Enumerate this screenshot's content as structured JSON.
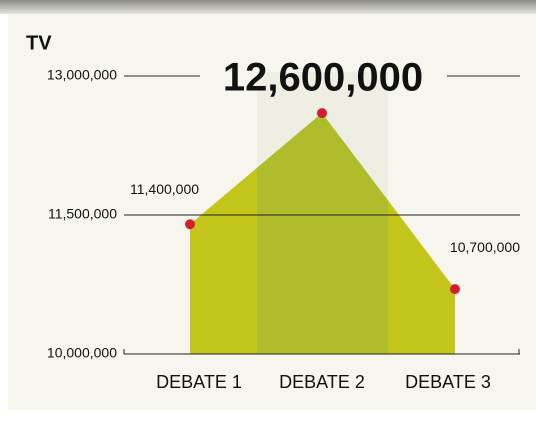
{
  "chart_data": {
    "type": "area",
    "title": "TV",
    "categories": [
      "DEBATE 1",
      "DEBATE 2",
      "DEBATE 3"
    ],
    "values": [
      11400000,
      12600000,
      10700000
    ],
    "value_labels": [
      "11,400,000",
      "12,600,000",
      "10,700,000"
    ],
    "color": "#c3c51b",
    "marker_color": "#d0202a",
    "ylim": [
      10000000,
      13000000
    ],
    "yticks": [
      {
        "value": 10000000,
        "label": "10,000,000"
      },
      {
        "value": 11500000,
        "label": "11,500,000"
      },
      {
        "value": 13000000,
        "label": "13,000,000"
      }
    ],
    "grid": true
  }
}
